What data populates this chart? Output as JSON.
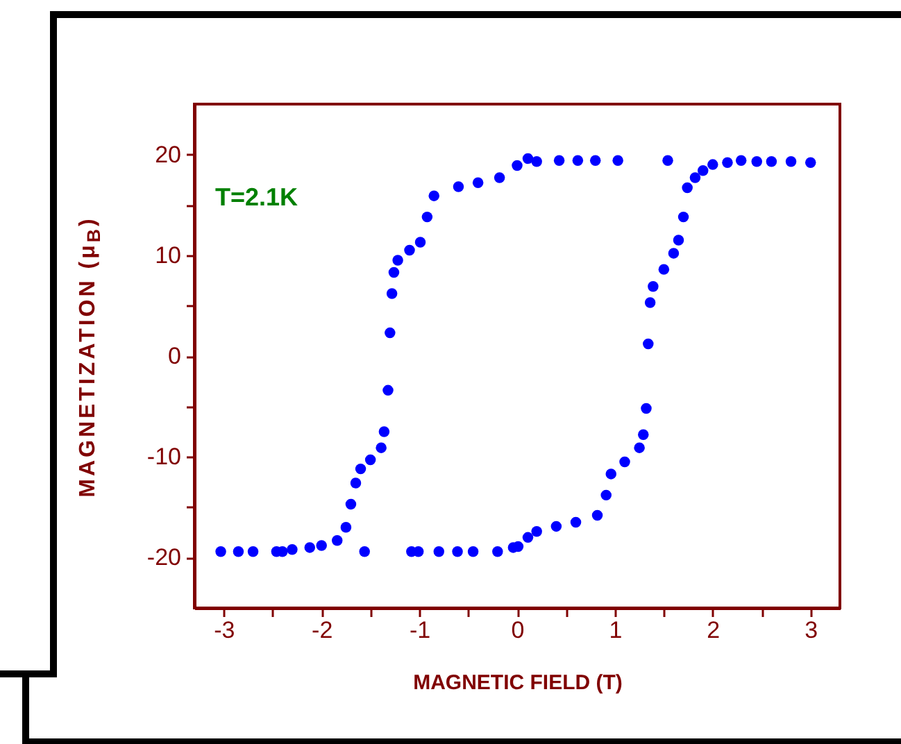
{
  "chart_data": {
    "type": "scatter",
    "xlabel": "MAGNETIC FIELD (T)",
    "ylabel": "MAGNETIZATION (μ$_{B}$)",
    "annotations": [
      "T=2.1K"
    ],
    "xlim": [
      -3.3,
      3.3
    ],
    "ylim": [
      -25,
      25
    ],
    "xticks": [
      -3,
      {
        "value": -2.5,
        "label": null
      },
      -2,
      {
        "value": -1.5,
        "label": null
      },
      -1,
      {
        "value": -0.5,
        "label": null
      },
      0,
      {
        "value": 0.5,
        "label": null
      },
      1,
      {
        "value": 1.5,
        "label": null
      },
      2,
      {
        "value": 2.5,
        "label": null
      },
      3
    ],
    "yticks": [
      -20,
      {
        "value": -15,
        "label": null
      },
      -10,
      {
        "value": -5,
        "label": null
      },
      0,
      {
        "value": 5,
        "label": null
      },
      10,
      {
        "value": 15,
        "label": null
      },
      20
    ],
    "grid": false,
    "marker": "circle",
    "series": [
      {
        "color": "#0000ff",
        "x": [
          3.0,
          2.8,
          2.6,
          2.45,
          2.29,
          2.15,
          2.0,
          1.9,
          1.82,
          1.74,
          1.7,
          1.65,
          1.6,
          1.54,
          1.03,
          0.8,
          0.62,
          0.43,
          0.2,
          0.11,
          0.0,
          -0.18,
          -0.4,
          -0.6,
          -0.85,
          -0.92,
          -0.99,
          -1.1,
          -1.22,
          -1.26,
          -1.28,
          -1.3,
          -1.32,
          -1.36,
          -1.39,
          -1.5,
          -1.56,
          -1.6,
          -1.65,
          -1.7,
          -1.75,
          -1.84,
          -2.0,
          -2.12,
          -2.3,
          -2.46,
          -2.7,
          -2.85,
          -3.03
        ],
        "values": [
          19.2,
          19.3,
          19.3,
          19.3,
          19.4,
          19.2,
          19.0,
          18.4,
          17.7,
          16.7,
          13.8,
          11.5,
          10.2,
          19.4,
          19.4,
          19.4,
          19.4,
          19.4,
          19.3,
          19.6,
          18.9,
          17.7,
          17.2,
          16.8,
          15.9,
          13.8,
          11.3,
          10.5,
          9.5,
          8.3,
          6.2,
          2.3,
          -3.4,
          -7.5,
          -9.1,
          -10.3,
          -19.4,
          -11.2,
          -12.6,
          -14.7,
          -17.0,
          -18.3,
          -18.8,
          -19.0,
          -19.2,
          -19.4,
          -19.4,
          -19.4,
          -19.4
        ]
      },
      {
        "color": "#0000ff",
        "x": [
          -2.4,
          -1.08,
          -1.01,
          -0.8,
          -0.61,
          -0.45,
          -0.2,
          -0.04,
          0.01,
          0.11,
          0.2,
          0.4,
          0.6,
          0.82,
          0.91,
          0.96,
          1.1,
          1.25,
          1.29,
          1.32,
          1.34,
          1.36,
          1.39,
          1.5
        ],
        "values": [
          -19.4,
          -19.4,
          -19.4,
          -19.4,
          -19.4,
          -19.4,
          -19.4,
          -19.0,
          -18.9,
          -18.0,
          -17.4,
          -16.9,
          -16.5,
          -15.8,
          -13.8,
          -11.7,
          -10.5,
          -9.1,
          -7.8,
          -5.2,
          1.2,
          5.3,
          6.9,
          8.6
        ]
      }
    ]
  }
}
